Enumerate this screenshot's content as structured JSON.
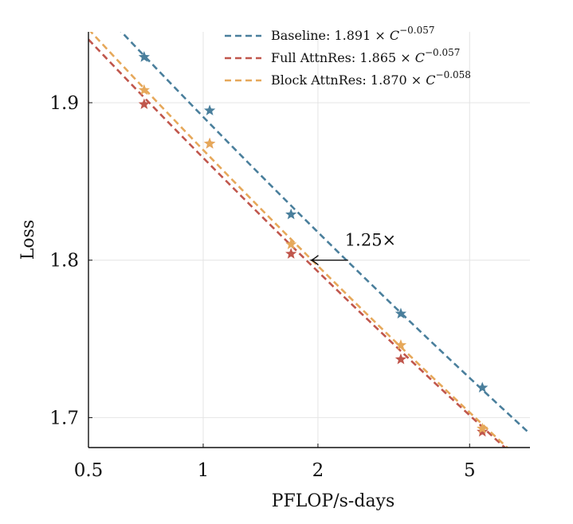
{
  "chart_data": {
    "type": "line",
    "xlabel": "PFLOP/s-days",
    "ylabel": "Loss",
    "xscale": "log",
    "xlim": [
      0.5,
      7.2
    ],
    "ylim": [
      1.681,
      1.945
    ],
    "xticks": [
      0.5,
      1,
      2,
      5
    ],
    "xtick_labels": [
      "0.5",
      "1",
      "2",
      "5"
    ],
    "yticks": [
      1.7,
      1.8,
      1.9
    ],
    "ytick_labels": [
      "1.7",
      "1.8",
      "1.9"
    ],
    "grid": true,
    "legend_position": "top-right",
    "series": [
      {
        "name": "Baseline",
        "legend_prefix": "Baseline: 1.891 × ",
        "legend_base": "C",
        "legend_exponent": "−0.057",
        "color": "#4a7f9c",
        "fit": {
          "a": 1.891,
          "b": -0.057
        },
        "points": [
          {
            "x": 0.7,
            "y": 1.929
          },
          {
            "x": 1.04,
            "y": 1.895
          },
          {
            "x": 1.7,
            "y": 1.829
          },
          {
            "x": 3.3,
            "y": 1.766
          },
          {
            "x": 5.4,
            "y": 1.719
          }
        ]
      },
      {
        "name": "Full AttnRes",
        "legend_prefix": "Full AttnRes: 1.865 × ",
        "legend_base": "C",
        "legend_exponent": "−0.057",
        "color": "#c0564c",
        "fit": {
          "a": 1.865,
          "b": -0.057
        },
        "points": [
          {
            "x": 0.7,
            "y": 1.899
          },
          {
            "x": 1.04,
            "y": 1.874
          },
          {
            "x": 1.7,
            "y": 1.804
          },
          {
            "x": 3.3,
            "y": 1.737
          },
          {
            "x": 5.4,
            "y": 1.691
          }
        ]
      },
      {
        "name": "Block AttnRes",
        "legend_prefix": "Block AttnRes: 1.870 × ",
        "legend_base": "C",
        "legend_exponent": "−0.058",
        "color": "#e6a85a",
        "fit": {
          "a": 1.87,
          "b": -0.058
        },
        "points": [
          {
            "x": 0.7,
            "y": 1.908
          },
          {
            "x": 1.04,
            "y": 1.874
          },
          {
            "x": 1.7,
            "y": 1.81
          },
          {
            "x": 3.3,
            "y": 1.746
          },
          {
            "x": 5.4,
            "y": 1.693
          }
        ]
      }
    ],
    "annotation": {
      "text": "1.25×",
      "arrow_from": {
        "x": 2.4,
        "y": 1.8
      },
      "arrow_to": {
        "x": 1.92,
        "y": 1.8
      }
    }
  }
}
